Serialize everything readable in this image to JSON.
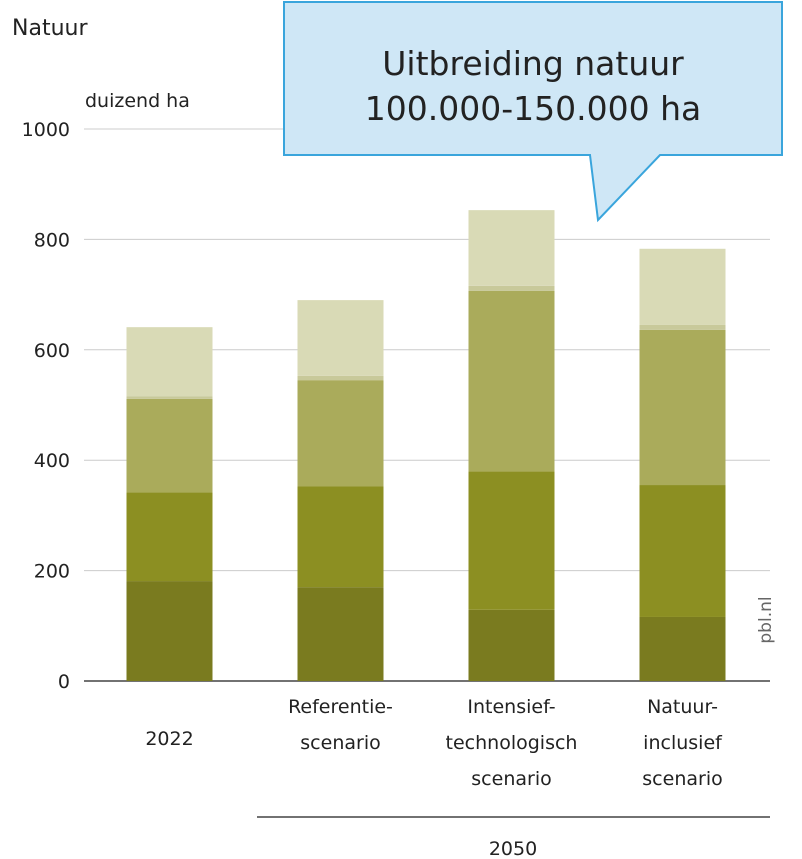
{
  "chart_data": {
    "type": "stacked-bar",
    "title": "Natuur",
    "y_label": "duizend ha",
    "categories": [
      [
        "2022"
      ],
      [
        "Referentie-",
        "scenario"
      ],
      [
        "Intensief-",
        "technologisch",
        "scenario"
      ],
      [
        "Natuur-",
        "inclusief",
        "scenario"
      ]
    ],
    "group_label": "2050",
    "series": [
      {
        "color": "#7a7b1f",
        "values": [
          181,
          170,
          129,
          116
        ]
      },
      {
        "color": "#8c8f22",
        "values": [
          161,
          183,
          251,
          239
        ]
      },
      {
        "color": "#aaab5b",
        "values": [
          169,
          192,
          327,
          281
        ]
      },
      {
        "color": "#c8c99a",
        "values": [
          5,
          8,
          9,
          9
        ]
      },
      {
        "color": "#d9dab6",
        "values": [
          125,
          137,
          137,
          138
        ]
      }
    ],
    "ylim": [
      0,
      1000
    ],
    "yticks": [
      0,
      200,
      400,
      600,
      800,
      1000
    ],
    "grid": true,
    "source": "pbl.nl",
    "annotation": [
      "Uitbreiding natuur",
      "100.000-150.000 ha"
    ]
  }
}
